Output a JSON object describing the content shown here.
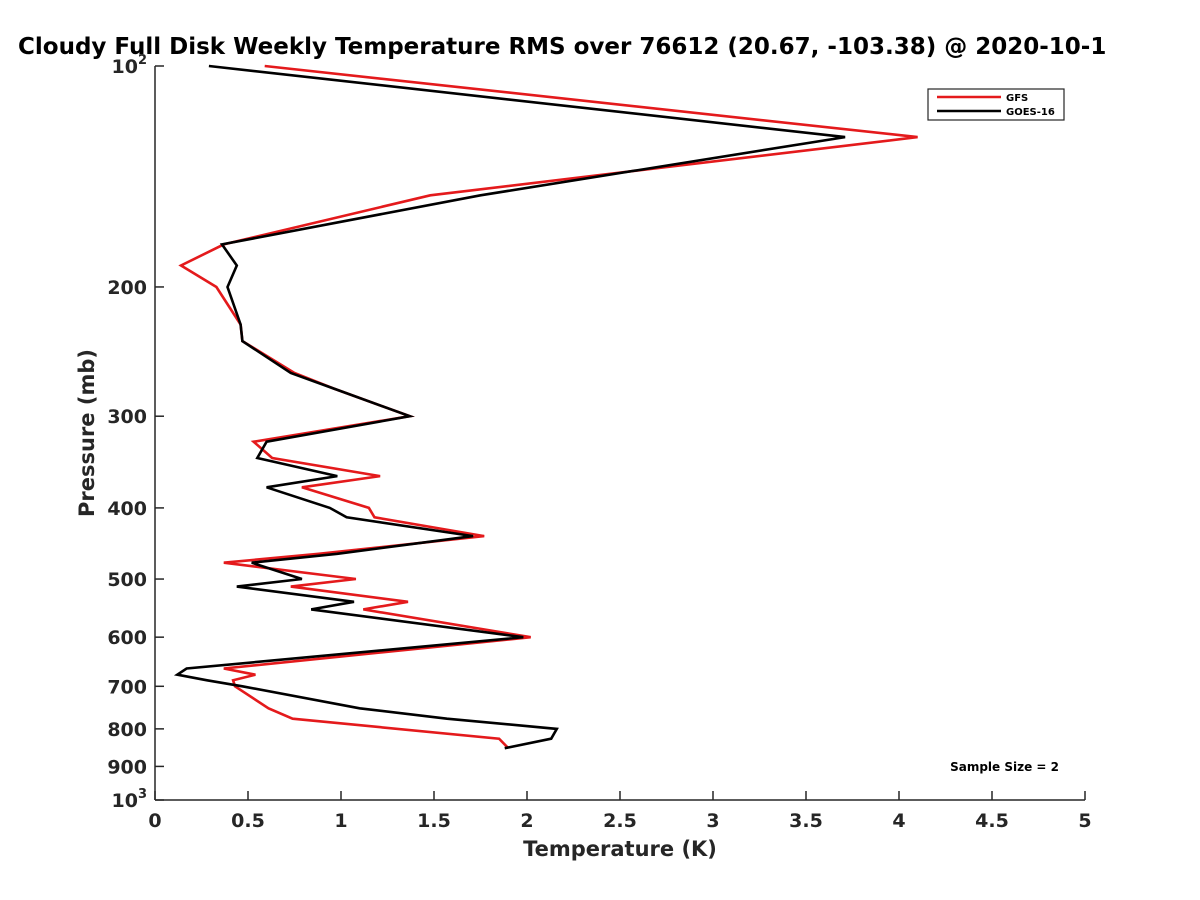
{
  "chart_data": {
    "type": "line",
    "title": "Cloudy Full Disk Weekly Temperature RMS over 76612 (20.67, -103.38) @ 2020-10-1",
    "xlabel": "Temperature (K)",
    "ylabel": "Pressure (mb)",
    "xlim": [
      0,
      5
    ],
    "ylim": [
      100,
      1000
    ],
    "y_scale": "log",
    "y_reversed": true,
    "grid": false,
    "legend_position": "top-right",
    "x_ticks": [
      {
        "value": 0,
        "label": "0"
      },
      {
        "value": 0.5,
        "label": "0.5"
      },
      {
        "value": 1,
        "label": "1"
      },
      {
        "value": 1.5,
        "label": "1.5"
      },
      {
        "value": 2,
        "label": "2"
      },
      {
        "value": 2.5,
        "label": "2.5"
      },
      {
        "value": 3,
        "label": "3"
      },
      {
        "value": 3.5,
        "label": "3.5"
      },
      {
        "value": 4,
        "label": "4"
      },
      {
        "value": 4.5,
        "label": "4.5"
      },
      {
        "value": 5,
        "label": "5"
      }
    ],
    "y_ticks": [
      {
        "value": 100,
        "label": "",
        "base": "10",
        "exp": "2"
      },
      {
        "value": 200,
        "label": "200"
      },
      {
        "value": 300,
        "label": "300"
      },
      {
        "value": 400,
        "label": "400"
      },
      {
        "value": 500,
        "label": "500"
      },
      {
        "value": 600,
        "label": "600"
      },
      {
        "value": 700,
        "label": "700"
      },
      {
        "value": 800,
        "label": "800"
      },
      {
        "value": 900,
        "label": "900"
      },
      {
        "value": 1000,
        "label": "",
        "base": "10",
        "exp": "3"
      }
    ],
    "series": [
      {
        "name": "GFS",
        "color": "#e41a1c",
        "points": [
          [
            0.59,
            100
          ],
          [
            4.1,
            125
          ],
          [
            1.48,
            150
          ],
          [
            0.37,
            175
          ],
          [
            0.14,
            187
          ],
          [
            0.33,
            200
          ],
          [
            0.46,
            225
          ],
          [
            0.47,
            237
          ],
          [
            0.75,
            262
          ],
          [
            0.96,
            275
          ],
          [
            1.37,
            300
          ],
          [
            0.53,
            325
          ],
          [
            0.63,
            342
          ],
          [
            1.21,
            362
          ],
          [
            0.79,
            375
          ],
          [
            1.15,
            400
          ],
          [
            1.18,
            412
          ],
          [
            1.77,
            437
          ],
          [
            0.88,
            462
          ],
          [
            0.37,
            475
          ],
          [
            1.08,
            500
          ],
          [
            0.73,
            512
          ],
          [
            1.36,
            537
          ],
          [
            1.12,
            550
          ],
          [
            2.02,
            600
          ],
          [
            0.37,
            662
          ],
          [
            0.54,
            675
          ],
          [
            0.42,
            687
          ],
          [
            0.43,
            700
          ],
          [
            0.61,
            750
          ],
          [
            0.74,
            775
          ],
          [
            1.85,
            825
          ],
          [
            1.9,
            850
          ]
        ]
      },
      {
        "name": "GOES-16",
        "color": "#000000",
        "points": [
          [
            0.29,
            100
          ],
          [
            3.71,
            125
          ],
          [
            1.75,
            150
          ],
          [
            0.36,
            175
          ],
          [
            0.44,
            187
          ],
          [
            0.39,
            200
          ],
          [
            0.46,
            225
          ],
          [
            0.47,
            237
          ],
          [
            0.73,
            262
          ],
          [
            0.96,
            275
          ],
          [
            1.37,
            300
          ],
          [
            0.6,
            325
          ],
          [
            0.55,
            342
          ],
          [
            0.98,
            362
          ],
          [
            0.6,
            375
          ],
          [
            0.94,
            400
          ],
          [
            1.03,
            412
          ],
          [
            1.71,
            437
          ],
          [
            0.98,
            462
          ],
          [
            0.52,
            475
          ],
          [
            0.79,
            500
          ],
          [
            0.44,
            512
          ],
          [
            1.07,
            537
          ],
          [
            0.84,
            550
          ],
          [
            1.98,
            600
          ],
          [
            0.17,
            662
          ],
          [
            0.12,
            675
          ],
          [
            0.28,
            687
          ],
          [
            0.47,
            700
          ],
          [
            1.1,
            750
          ],
          [
            1.57,
            775
          ],
          [
            2.16,
            800
          ],
          [
            2.13,
            825
          ],
          [
            1.88,
            850
          ]
        ]
      }
    ],
    "annotation": "Sample Size = 2"
  }
}
